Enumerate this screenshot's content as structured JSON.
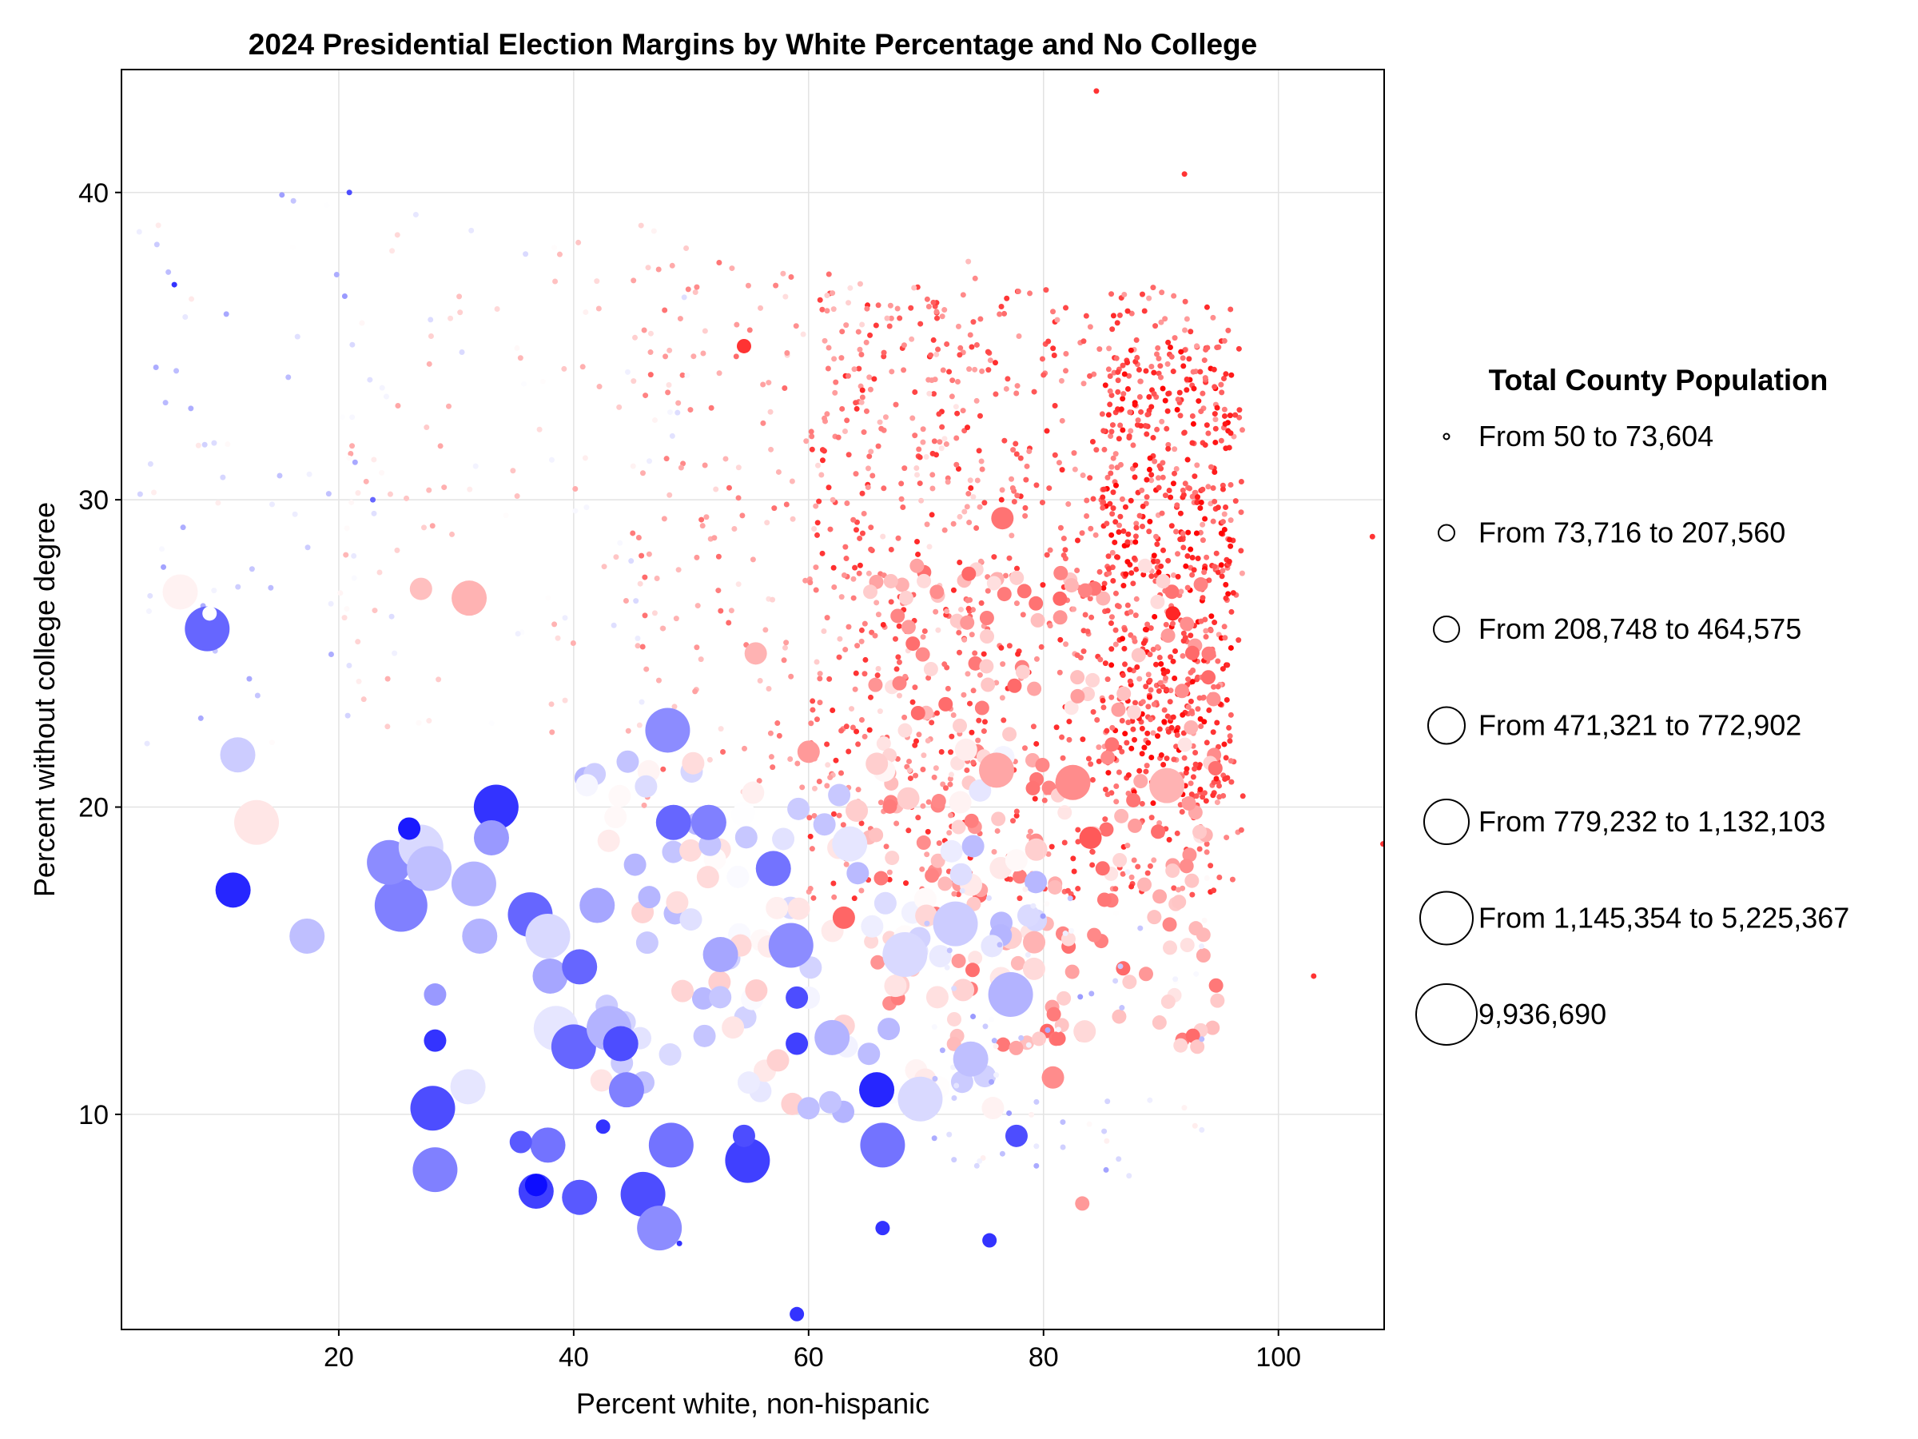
{
  "chart_data": {
    "type": "scatter",
    "title": "2024 Presidential Election Margins by White Percentage and No College",
    "xlabel": "Percent white, non-hispanic",
    "ylabel": "Percent without college degree",
    "xlim": [
      1.5,
      109
    ],
    "ylim": [
      3,
      44
    ],
    "xticks": [
      20,
      40,
      60,
      80,
      100
    ],
    "yticks": [
      10,
      20,
      30,
      40
    ],
    "grid": true,
    "color_scale": {
      "dem": "#0000ff",
      "neutral": "#ffffff",
      "rep": "#ff0000"
    },
    "legend": {
      "title": "Total County Population",
      "placement": "right",
      "entries": [
        "From 50 to 73,604",
        "From 73,716 to 207,560",
        "From 208,748 to 464,575",
        "From 471,321 to 772,902",
        "From 779,232 to 1,132,103",
        "From 1,145,354 to 5,225,367",
        "9,936,690"
      ]
    },
    "series": [
      {
        "size_class_meaning": "index into legend.entries",
        "points": [
          {
            "x": 8.8,
            "y": 25.8,
            "margin": -0.6,
            "size": 4
          },
          {
            "x": 9.0,
            "y": 26.3,
            "margin": 0.0,
            "size": 1
          },
          {
            "x": 11.0,
            "y": 17.3,
            "margin": -0.85,
            "size": 3
          },
          {
            "x": 11.4,
            "y": 21.7,
            "margin": -0.2,
            "size": 3
          },
          {
            "x": 13.0,
            "y": 19.5,
            "margin": 0.1,
            "size": 4
          },
          {
            "x": 17.3,
            "y": 15.8,
            "margin": -0.25,
            "size": 3
          },
          {
            "x": 6.5,
            "y": 27.0,
            "margin": 0.05,
            "size": 3
          },
          {
            "x": 24.3,
            "y": 18.2,
            "margin": -0.45,
            "size": 4
          },
          {
            "x": 25.3,
            "y": 16.8,
            "margin": -0.5,
            "size": 5
          },
          {
            "x": 26.0,
            "y": 19.3,
            "margin": -0.9,
            "size": 2
          },
          {
            "x": 27.0,
            "y": 18.7,
            "margin": -0.15,
            "size": 4
          },
          {
            "x": 27.7,
            "y": 18.0,
            "margin": -0.25,
            "size": 4
          },
          {
            "x": 27.0,
            "y": 27.1,
            "margin": 0.25,
            "size": 2
          },
          {
            "x": 31.1,
            "y": 26.8,
            "margin": 0.3,
            "size": 3
          },
          {
            "x": 33.4,
            "y": 20.0,
            "margin": -0.8,
            "size": 4
          },
          {
            "x": 33.0,
            "y": 19.0,
            "margin": -0.4,
            "size": 3
          },
          {
            "x": 31.5,
            "y": 17.5,
            "margin": -0.3,
            "size": 4
          },
          {
            "x": 32.0,
            "y": 15.8,
            "margin": -0.3,
            "size": 3
          },
          {
            "x": 36.3,
            "y": 16.5,
            "margin": -0.6,
            "size": 4
          },
          {
            "x": 37.8,
            "y": 15.8,
            "margin": -0.15,
            "size": 4
          },
          {
            "x": 38.0,
            "y": 14.5,
            "margin": -0.35,
            "size": 3
          },
          {
            "x": 38.5,
            "y": 12.8,
            "margin": -0.1,
            "size": 4
          },
          {
            "x": 40.0,
            "y": 12.2,
            "margin": -0.6,
            "size": 4
          },
          {
            "x": 40.5,
            "y": 14.8,
            "margin": -0.6,
            "size": 3
          },
          {
            "x": 42.0,
            "y": 16.8,
            "margin": -0.35,
            "size": 3
          },
          {
            "x": 43.0,
            "y": 12.8,
            "margin": -0.3,
            "size": 4
          },
          {
            "x": 44.0,
            "y": 12.3,
            "margin": -0.7,
            "size": 3
          },
          {
            "x": 44.5,
            "y": 10.8,
            "margin": -0.5,
            "size": 3
          },
          {
            "x": 28.2,
            "y": 13.9,
            "margin": -0.4,
            "size": 2
          },
          {
            "x": 28.2,
            "y": 12.4,
            "margin": -0.8,
            "size": 2
          },
          {
            "x": 28.0,
            "y": 10.2,
            "margin": -0.7,
            "size": 4
          },
          {
            "x": 28.2,
            "y": 8.2,
            "margin": -0.5,
            "size": 4
          },
          {
            "x": 31.0,
            "y": 10.9,
            "margin": -0.1,
            "size": 3
          },
          {
            "x": 35.5,
            "y": 9.1,
            "margin": -0.65,
            "size": 2
          },
          {
            "x": 37.8,
            "y": 9.0,
            "margin": -0.55,
            "size": 3
          },
          {
            "x": 36.8,
            "y": 7.5,
            "margin": -0.75,
            "size": 3
          },
          {
            "x": 36.8,
            "y": 7.7,
            "margin": -0.95,
            "size": 2
          },
          {
            "x": 40.5,
            "y": 7.3,
            "margin": -0.65,
            "size": 3
          },
          {
            "x": 42.5,
            "y": 9.6,
            "margin": -0.8,
            "size": 1
          },
          {
            "x": 45.9,
            "y": 7.4,
            "margin": -0.7,
            "size": 4
          },
          {
            "x": 47.3,
            "y": 6.3,
            "margin": -0.45,
            "size": 4
          },
          {
            "x": 48.3,
            "y": 9.0,
            "margin": -0.55,
            "size": 4
          },
          {
            "x": 48.5,
            "y": 19.5,
            "margin": -0.6,
            "size": 3
          },
          {
            "x": 48.0,
            "y": 22.5,
            "margin": -0.45,
            "size": 4
          },
          {
            "x": 51.5,
            "y": 19.5,
            "margin": -0.5,
            "size": 3
          },
          {
            "x": 52.5,
            "y": 15.2,
            "margin": -0.35,
            "size": 3
          },
          {
            "x": 54.8,
            "y": 8.5,
            "margin": -0.75,
            "size": 4
          },
          {
            "x": 54.5,
            "y": 9.3,
            "margin": -0.7,
            "size": 2
          },
          {
            "x": 57.0,
            "y": 18.0,
            "margin": -0.55,
            "size": 3
          },
          {
            "x": 58.5,
            "y": 15.5,
            "margin": -0.45,
            "size": 4
          },
          {
            "x": 59.0,
            "y": 12.3,
            "margin": -0.75,
            "size": 2
          },
          {
            "x": 59.0,
            "y": 13.8,
            "margin": -0.7,
            "size": 2
          },
          {
            "x": 60.0,
            "y": 10.2,
            "margin": -0.25,
            "size": 2
          },
          {
            "x": 62.0,
            "y": 12.5,
            "margin": -0.3,
            "size": 3
          },
          {
            "x": 63.5,
            "y": 18.8,
            "margin": -0.1,
            "size": 3
          },
          {
            "x": 63.0,
            "y": 16.4,
            "margin": 0.6,
            "size": 2
          },
          {
            "x": 65.8,
            "y": 10.8,
            "margin": -0.85,
            "size": 3
          },
          {
            "x": 66.3,
            "y": 9.0,
            "margin": -0.55,
            "size": 4
          },
          {
            "x": 68.2,
            "y": 15.2,
            "margin": -0.15,
            "size": 4
          },
          {
            "x": 69.5,
            "y": 10.5,
            "margin": -0.15,
            "size": 4
          },
          {
            "x": 72.5,
            "y": 16.2,
            "margin": -0.2,
            "size": 4
          },
          {
            "x": 73.8,
            "y": 11.8,
            "margin": -0.25,
            "size": 3
          },
          {
            "x": 77.2,
            "y": 13.9,
            "margin": -0.3,
            "size": 4
          },
          {
            "x": 77.7,
            "y": 9.3,
            "margin": -0.7,
            "size": 2
          },
          {
            "x": 80.8,
            "y": 11.2,
            "margin": 0.45,
            "size": 2
          },
          {
            "x": 83.5,
            "y": 12.7,
            "margin": 0.15,
            "size": 2
          },
          {
            "x": 79.2,
            "y": 15.6,
            "margin": 0.3,
            "size": 2
          },
          {
            "x": 84.0,
            "y": 19.0,
            "margin": 0.65,
            "size": 2
          },
          {
            "x": 82.5,
            "y": 20.8,
            "margin": 0.45,
            "size": 3
          },
          {
            "x": 76.0,
            "y": 21.2,
            "margin": 0.35,
            "size": 3
          },
          {
            "x": 90.5,
            "y": 20.7,
            "margin": 0.3,
            "size": 3
          },
          {
            "x": 60.0,
            "y": 21.8,
            "margin": 0.4,
            "size": 2
          },
          {
            "x": 55.5,
            "y": 25.0,
            "margin": 0.3,
            "size": 2
          },
          {
            "x": 54.5,
            "y": 35.0,
            "margin": 0.8,
            "size": 1
          },
          {
            "x": 76.5,
            "y": 29.4,
            "margin": 0.55,
            "size": 2
          },
          {
            "x": 91.0,
            "y": 26.3,
            "margin": 0.85,
            "size": 1
          },
          {
            "x": 83.3,
            "y": 7.1,
            "margin": 0.4,
            "size": 1
          },
          {
            "x": 59.0,
            "y": 3.5,
            "margin": -0.8,
            "size": 1
          },
          {
            "x": 75.4,
            "y": 5.9,
            "margin": -0.8,
            "size": 1
          },
          {
            "x": 66.3,
            "y": 6.3,
            "margin": -0.8,
            "size": 1
          },
          {
            "x": 49.0,
            "y": 5.8,
            "margin": -0.8,
            "size": 0
          },
          {
            "x": 22.9,
            "y": 30.0,
            "margin": -0.6,
            "size": 0
          },
          {
            "x": 84.5,
            "y": 43.3,
            "margin": 0.8,
            "size": 0
          },
          {
            "x": 92.0,
            "y": 40.6,
            "margin": 0.8,
            "size": 0
          },
          {
            "x": 103.0,
            "y": 14.5,
            "margin": 0.8,
            "size": 0
          },
          {
            "x": 108.9,
            "y": 18.8,
            "margin": 0.8,
            "size": 0
          },
          {
            "x": 108.0,
            "y": 28.8,
            "margin": 0.8,
            "size": 0
          },
          {
            "x": 20.9,
            "y": 40.0,
            "margin": -0.7,
            "size": 0
          },
          {
            "x": 6.0,
            "y": 37.0,
            "margin": -0.8,
            "size": 0
          }
        ]
      }
    ],
    "dense_cluster_regions": [
      {
        "x_range": [
          60,
          97
        ],
        "y_range": [
          17,
          37
        ],
        "margin_mean": 0.6,
        "size": 0,
        "count": 900
      },
      {
        "x_range": [
          85,
          96
        ],
        "y_range": [
          20,
          35
        ],
        "margin_mean": 0.75,
        "size": 0,
        "count": 500
      },
      {
        "x_range": [
          45,
          75
        ],
        "y_range": [
          20,
          38
        ],
        "margin_mean": 0.35,
        "size": 0,
        "count": 250
      },
      {
        "x_range": [
          20,
          50
        ],
        "y_range": [
          22,
          40
        ],
        "margin_mean": 0.1,
        "size": 0,
        "count": 120
      },
      {
        "x_range": [
          3,
          22
        ],
        "y_range": [
          22,
          40
        ],
        "margin_mean": -0.15,
        "size": 0,
        "count": 60
      },
      {
        "x_range": [
          65,
          95
        ],
        "y_range": [
          12,
          28
        ],
        "margin_mean": 0.35,
        "size": 1,
        "count": 220
      },
      {
        "x_range": [
          40,
          80
        ],
        "y_range": [
          10,
          22
        ],
        "margin_mean": -0.05,
        "size": 2,
        "count": 120
      },
      {
        "x_range": [
          70,
          95
        ],
        "y_range": [
          8,
          18
        ],
        "margin_mean": -0.15,
        "size": 0,
        "count": 80
      }
    ]
  }
}
